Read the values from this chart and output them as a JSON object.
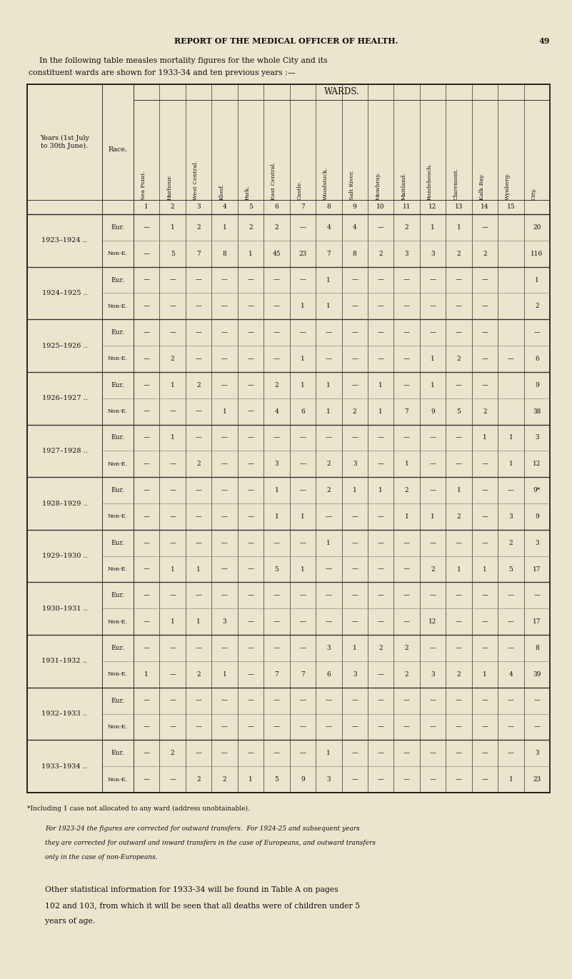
{
  "bg_color": "#EAE5CC",
  "page_title": "REPORT OF THE MEDICAL OFFICER OF HEALTH.",
  "page_number": "49",
  "intro_line1": "In the following table measles mortality figures for the whole City and its",
  "intro_line2": "constituent wards are shown for 1933-34 and ten previous years :—",
  "table_header": "WARDS.",
  "col_headers_rotated": [
    "Sea Point.",
    "Harbour.",
    "West Central.",
    "Kloof.",
    "Park.",
    "East Central.",
    "Castle.",
    "Woodstock.",
    "Salt River.",
    "Mowbray.",
    "Maitland.",
    "Rondebosch.",
    "Claremont.",
    "Kalk Bay.",
    "Wynberg.",
    "City."
  ],
  "col_numbers": [
    "1",
    "2",
    "3",
    "4",
    "5",
    "6",
    "7",
    "8",
    "9",
    "10",
    "11",
    "12",
    "13",
    "14",
    "15",
    ""
  ],
  "rows": [
    {
      "year": "1923–1924 ..",
      "eur": [
        "—",
        "1",
        "2",
        "1",
        "2",
        "2",
        "—",
        "4",
        "4",
        "—",
        "2",
        "1",
        "1",
        "—",
        "",
        "20"
      ],
      "none": [
        "—",
        "5",
        "7",
        "8",
        "1",
        "45",
        "23",
        "7",
        "8",
        "2",
        "3",
        "3",
        "2",
        "2",
        "",
        "116"
      ]
    },
    {
      "year": "1924–1925 ..",
      "eur": [
        "—",
        "—",
        "—",
        "—",
        "—",
        "—",
        "—",
        "1",
        "—",
        "—",
        "—",
        "—",
        "—",
        "—",
        "",
        "1"
      ],
      "none": [
        "—",
        "—",
        "—",
        "—",
        "—",
        "—",
        "1",
        "1",
        "—",
        "—",
        "—",
        "—",
        "—",
        "—",
        "",
        "2"
      ]
    },
    {
      "year": "1925–1926 ..",
      "eur": [
        "—",
        "—",
        "—",
        "—",
        "—",
        "—",
        "—",
        "—",
        "—",
        "—",
        "—",
        "—",
        "—",
        "—",
        "",
        "—"
      ],
      "none": [
        "—",
        "2",
        "—",
        "—",
        "—",
        "—",
        "1",
        "—",
        "—",
        "—",
        "—",
        "1",
        "2",
        "—",
        "—",
        "6"
      ]
    },
    {
      "year": "1926–1927 ..",
      "eur": [
        "—",
        "1",
        "2",
        "—",
        "—",
        "2",
        "1",
        "1",
        "—",
        "1",
        "—",
        "1",
        "—",
        "—",
        "",
        "9"
      ],
      "none": [
        "—",
        "—",
        "—",
        "1",
        "—",
        "4",
        "6",
        "1",
        "2",
        "1",
        "7",
        "9",
        "5",
        "2",
        "",
        "38"
      ]
    },
    {
      "year": "1927–1928 ..",
      "eur": [
        "—",
        "1",
        "—",
        "—",
        "—",
        "—",
        "—",
        "—",
        "—",
        "—",
        "—",
        "—",
        "—",
        "1",
        "1",
        "3"
      ],
      "none": [
        "—",
        "—",
        "2",
        "—",
        "—",
        "3",
        "—",
        "2",
        "3",
        "—",
        "1",
        "—",
        "—",
        "—",
        "1",
        "12"
      ]
    },
    {
      "year": "1928–1929 ..",
      "eur": [
        "—",
        "—",
        "—",
        "—",
        "—",
        "1",
        "—",
        "2",
        "1",
        "1",
        "2",
        "—",
        "1",
        "—",
        "—",
        "9*"
      ],
      "none": [
        "—",
        "—",
        "—",
        "—",
        "—",
        "1",
        "1",
        "—",
        "—",
        "—",
        "1",
        "1",
        "2",
        "—",
        "3",
        "9"
      ]
    },
    {
      "year": "1929–1930 ..",
      "eur": [
        "—",
        "—",
        "—",
        "—",
        "—",
        "—",
        "—",
        "1",
        "—",
        "—",
        "—",
        "—",
        "—",
        "—",
        "2",
        "3"
      ],
      "none": [
        "—",
        "1",
        "1",
        "—",
        "—",
        "5",
        "1",
        "—",
        "—",
        "—",
        "—",
        "2",
        "1",
        "1",
        "5",
        "17"
      ]
    },
    {
      "year": "1930–1931 ..",
      "eur": [
        "—",
        "—",
        "—",
        "—",
        "—",
        "—",
        "—",
        "—",
        "—",
        "—",
        "—",
        "—",
        "—",
        "—",
        "—",
        "—"
      ],
      "none": [
        "—",
        "1",
        "1",
        "3",
        "—",
        "—",
        "—",
        "—",
        "—",
        "—",
        "—",
        "12",
        "—",
        "—",
        "—",
        "17"
      ]
    },
    {
      "year": "1931–1932 ..",
      "eur": [
        "—",
        "—",
        "—",
        "—",
        "—",
        "—",
        "—",
        "3",
        "1",
        "2",
        "2",
        "—",
        "—",
        "—",
        "—",
        "8"
      ],
      "none": [
        "1",
        "—",
        "2",
        "1",
        "—",
        "7",
        "7",
        "6",
        "3",
        "—",
        "2",
        "3",
        "2",
        "1",
        "4",
        "39"
      ]
    },
    {
      "year": "1932–1933 ..",
      "eur": [
        "—",
        "—",
        "—",
        "—",
        "—",
        "—",
        "—",
        "—",
        "—",
        "—",
        "—",
        "—",
        "—",
        "—",
        "—",
        "—"
      ],
      "none": [
        "—",
        "—",
        "—",
        "—",
        "—",
        "—",
        "—",
        "—",
        "—",
        "—",
        "—",
        "—",
        "—",
        "—",
        "—",
        "—"
      ]
    },
    {
      "year": "1933–1934 ..",
      "eur": [
        "—",
        "2",
        "—",
        "—",
        "—",
        "—",
        "—",
        "1",
        "—",
        "—",
        "—",
        "—",
        "—",
        "—",
        "—",
        "3"
      ],
      "none": [
        "—",
        "—",
        "2",
        "2",
        "1",
        "5",
        "9",
        "3",
        "—",
        "—",
        "—",
        "—",
        "—",
        "—",
        "1",
        "23"
      ]
    }
  ],
  "footnote1": "*Including 1 case not allocated to any ward (address unobtainable).",
  "footnote2": "For 1923-24 the figures are corrected for outward transfers.  For 1924-25 and subsequent years",
  "footnote3": "they are corrected for outward and inward transfers in the case of Europeans, and outward transfers",
  "footnote4": "only in the case of non-Europeans.",
  "closing1": "Other statistical information for 1933-34 will be found in Table A on pages",
  "closing2": "102 and 103, from which it will be seen that all deaths were of children under 5",
  "closing3": "years of age."
}
